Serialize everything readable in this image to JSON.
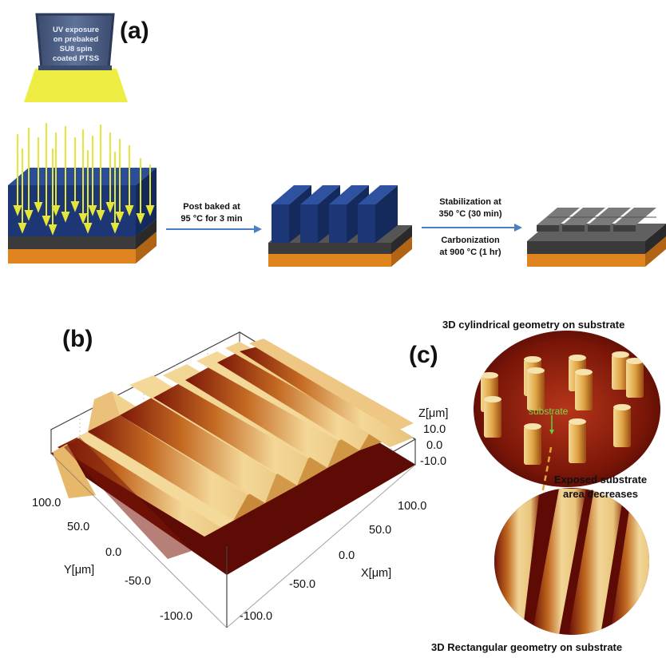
{
  "panel_a": {
    "label": "(a)",
    "lamp_text": [
      "UV exposure",
      "on prebaked",
      "SU8 spin",
      "coated PTSS"
    ],
    "step1": [
      "Post baked at",
      "95 °C for 3 min"
    ],
    "step2a": [
      "Stabilization at",
      "350 °C (30 min)"
    ],
    "step2b": [
      "Carbonization",
      "at 900 °C (1 hr)"
    ]
  },
  "panel_b": {
    "label": "(b)",
    "z_axis": {
      "title": "Z[μm]",
      "ticks": [
        "10.0",
        "0.0",
        "-10.0"
      ]
    },
    "y_axis": {
      "title": "Y[μm]",
      "ticks": [
        "100.0",
        "50.0",
        "0.0",
        "-50.0",
        "-100.0"
      ]
    },
    "x_axis": {
      "title": "X[μm]",
      "ticks": [
        "100.0",
        "50.0",
        "0.0",
        "-50.0",
        "-100.0"
      ]
    }
  },
  "panel_c": {
    "label": "(c)",
    "top_title": "3D cylindrical geometry on substrate",
    "substrate_label": "substrate",
    "middle_note": [
      "Exposed substrate",
      "area decreases"
    ],
    "bottom_title": "3D Rectangular geometry on substrate"
  },
  "colors": {
    "uv": "#e2e23c",
    "su8": "#1f3f86",
    "carbon": "#555555",
    "substrate": "#e0841f",
    "arrow": "#4a7fc0",
    "afm_dark": "#5e0b05",
    "afm_light": "#f2d79a"
  }
}
